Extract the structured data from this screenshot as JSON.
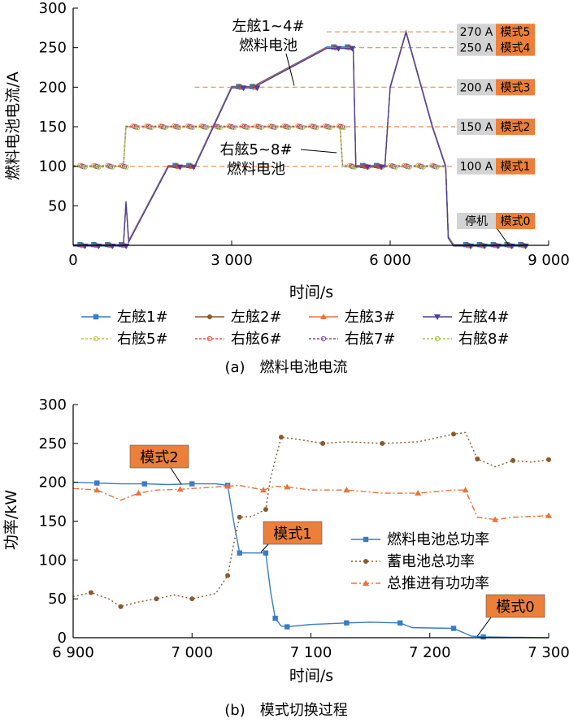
{
  "chart_data": [
    {
      "type": "line",
      "caption": "(a) 燃料电池电流",
      "xlabel": "时间/s",
      "ylabel": "燃料电池电流/A",
      "xlim": [
        0,
        9000
      ],
      "ylim": [
        0,
        300
      ],
      "xticks": [
        0,
        3000,
        6000,
        9000
      ],
      "xtick_labels": [
        "0",
        "3 000",
        "6 000",
        "9 000"
      ],
      "yticks": [
        50,
        100,
        150,
        200,
        250,
        300
      ],
      "ytick_labels": [
        "50",
        "100",
        "150",
        "200",
        "250",
        "300"
      ],
      "grid": false,
      "legend_position": "bottom",
      "annotations": [
        {
          "text": "左舷1~4#",
          "line2": "燃料电池",
          "target": [
            4500,
            200
          ]
        },
        {
          "text": "右舷5~8#",
          "line2": "燃料电池",
          "target": [
            5050,
            150
          ]
        }
      ],
      "mode_labels": [
        {
          "current": "270 A",
          "mode": "模式5",
          "y": 270
        },
        {
          "current": "250 A",
          "mode": "模式4",
          "y": 250
        },
        {
          "current": "200 A",
          "mode": "模式3",
          "y": 200
        },
        {
          "current": "150 A",
          "mode": "模式2",
          "y": 150
        },
        {
          "current": "100 A",
          "mode": "模式1",
          "y": 100
        },
        {
          "current": "停机",
          "mode": "模式0",
          "y": 0
        }
      ],
      "series": [
        {
          "name": "左舷1#",
          "color": "#3a7cc5",
          "marker": "square",
          "group": "port",
          "x": [
            0,
            950,
            1000,
            1050,
            1800,
            2300,
            3000,
            3400,
            4800,
            5300,
            5350,
            5900,
            6000,
            6300,
            6800,
            7050,
            7100,
            7200,
            7300,
            8600
          ],
          "y": [
            0,
            0,
            55,
            5,
            100,
            100,
            200,
            200,
            250,
            250,
            100,
            100,
            200,
            270,
            150,
            100,
            10,
            0,
            0,
            0
          ]
        },
        {
          "name": "左舷2#",
          "color": "#8b5a2b",
          "marker": "circle",
          "group": "port",
          "x": [
            0,
            950,
            1000,
            1050,
            1800,
            2300,
            3000,
            3400,
            4800,
            5300,
            5350,
            5900,
            6000,
            6300,
            6800,
            7050,
            7100,
            7200,
            7300,
            8600
          ],
          "y": [
            0,
            0,
            55,
            5,
            100,
            100,
            200,
            200,
            250,
            250,
            100,
            100,
            200,
            270,
            150,
            100,
            10,
            0,
            0,
            0
          ]
        },
        {
          "name": "左舷3#",
          "color": "#e8743b",
          "marker": "triangle",
          "group": "port",
          "x": [
            0,
            950,
            1000,
            1050,
            1800,
            2300,
            3000,
            3400,
            4800,
            5300,
            5350,
            5900,
            6000,
            6300,
            6800,
            7050,
            7100,
            7200,
            7300,
            8600
          ],
          "y": [
            0,
            0,
            55,
            5,
            100,
            100,
            200,
            200,
            250,
            250,
            100,
            100,
            200,
            270,
            150,
            100,
            10,
            0,
            0,
            0
          ]
        },
        {
          "name": "左舷4#",
          "color": "#4b3f9a",
          "marker": "triangle-down",
          "group": "port",
          "x": [
            0,
            950,
            1000,
            1050,
            1800,
            2300,
            3000,
            3400,
            4800,
            5300,
            5350,
            5900,
            6000,
            6300,
            6800,
            7050,
            7100,
            7200,
            7300,
            8600
          ],
          "y": [
            0,
            0,
            55,
            5,
            100,
            100,
            200,
            200,
            250,
            250,
            100,
            100,
            200,
            270,
            150,
            100,
            10,
            0,
            0,
            0
          ]
        },
        {
          "name": "右舷5#",
          "color": "#c9c24a",
          "marker": "dot",
          "group": "starboard",
          "x": [
            0,
            950,
            1000,
            5050,
            5100,
            7050,
            7100,
            7200,
            7300,
            8600
          ],
          "y": [
            100,
            100,
            150,
            150,
            100,
            100,
            10,
            0,
            0,
            0
          ]
        },
        {
          "name": "右舷6#",
          "color": "#e05a3a",
          "marker": "dot",
          "group": "starboard",
          "x": [
            0,
            950,
            1000,
            5050,
            5100,
            7050,
            7100,
            7200,
            7300,
            8600
          ],
          "y": [
            100,
            100,
            150,
            150,
            100,
            100,
            10,
            0,
            0,
            0
          ]
        },
        {
          "name": "右舷7#",
          "color": "#8a4fa8",
          "marker": "dot",
          "group": "starboard",
          "x": [
            0,
            950,
            1000,
            5050,
            5100,
            7050,
            7100,
            7200,
            7300,
            8600
          ],
          "y": [
            100,
            100,
            150,
            150,
            100,
            100,
            10,
            0,
            0,
            0
          ]
        },
        {
          "name": "右舷8#",
          "color": "#a6c94a",
          "marker": "dot",
          "group": "starboard",
          "x": [
            0,
            950,
            1000,
            5050,
            5100,
            7050,
            7100,
            7200,
            7300,
            8600
          ],
          "y": [
            100,
            100,
            150,
            150,
            100,
            100,
            10,
            0,
            0,
            0
          ]
        }
      ]
    },
    {
      "type": "line",
      "caption": "(b) 模式切换过程",
      "xlabel": "时间/s",
      "ylabel": "功率/kW",
      "xlim": [
        6900,
        7300
      ],
      "ylim": [
        0,
        300
      ],
      "xticks": [
        6900,
        7000,
        7100,
        7200,
        7300
      ],
      "xtick_labels": [
        "6 900",
        "7 000",
        "7 100",
        "7 200",
        "7 300"
      ],
      "yticks": [
        0,
        50,
        100,
        150,
        200,
        250,
        300
      ],
      "ytick_labels": [
        "0",
        "50",
        "100",
        "150",
        "200",
        "250",
        "300"
      ],
      "grid": false,
      "legend_position": "right",
      "annotations": [
        {
          "text": "模式2",
          "target": [
            6998,
            197
          ]
        },
        {
          "text": "模式1",
          "target": [
            7058,
            110
          ]
        },
        {
          "text": "模式0",
          "target": [
            7240,
            2
          ]
        }
      ],
      "series": [
        {
          "name": "燃料电池总功率",
          "color": "#3a7cc5",
          "marker": "square",
          "dash": "solid",
          "x": [
            6900,
            6920,
            6940,
            6960,
            6980,
            7000,
            7020,
            7030,
            7035,
            7040,
            7050,
            7062,
            7066,
            7070,
            7075,
            7080,
            7100,
            7130,
            7150,
            7175,
            7185,
            7220,
            7235,
            7245,
            7300
          ],
          "y": [
            200,
            199,
            198,
            198,
            197,
            198,
            198,
            196,
            150,
            109,
            109,
            109,
            60,
            25,
            15,
            14,
            17,
            19,
            20,
            19,
            13,
            12,
            2,
            1,
            0
          ]
        },
        {
          "name": "蓄电池总功率",
          "color": "#8b5a2b",
          "marker": "dot",
          "dash": "dotted",
          "x": [
            6900,
            6915,
            6930,
            6940,
            6955,
            6970,
            6985,
            7000,
            7020,
            7030,
            7035,
            7040,
            7050,
            7062,
            7066,
            7075,
            7090,
            7110,
            7130,
            7160,
            7190,
            7220,
            7230,
            7240,
            7255,
            7270,
            7285,
            7300
          ],
          "y": [
            53,
            58,
            50,
            40,
            46,
            50,
            55,
            50,
            57,
            80,
            120,
            155,
            156,
            165,
            205,
            258,
            255,
            250,
            252,
            250,
            252,
            262,
            264,
            230,
            220,
            228,
            226,
            229
          ]
        },
        {
          "name": "总推进有功功率",
          "color": "#e8743b",
          "marker": "triangle",
          "dash": "dashdot",
          "x": [
            6900,
            6920,
            6940,
            6955,
            6970,
            6990,
            7010,
            7030,
            7040,
            7060,
            7070,
            7080,
            7100,
            7130,
            7160,
            7190,
            7220,
            7230,
            7240,
            7255,
            7270,
            7300
          ],
          "y": [
            192,
            190,
            177,
            186,
            190,
            191,
            193,
            195,
            196,
            190,
            195,
            194,
            190,
            190,
            186,
            186,
            190,
            190,
            155,
            152,
            155,
            157
          ]
        }
      ]
    }
  ]
}
